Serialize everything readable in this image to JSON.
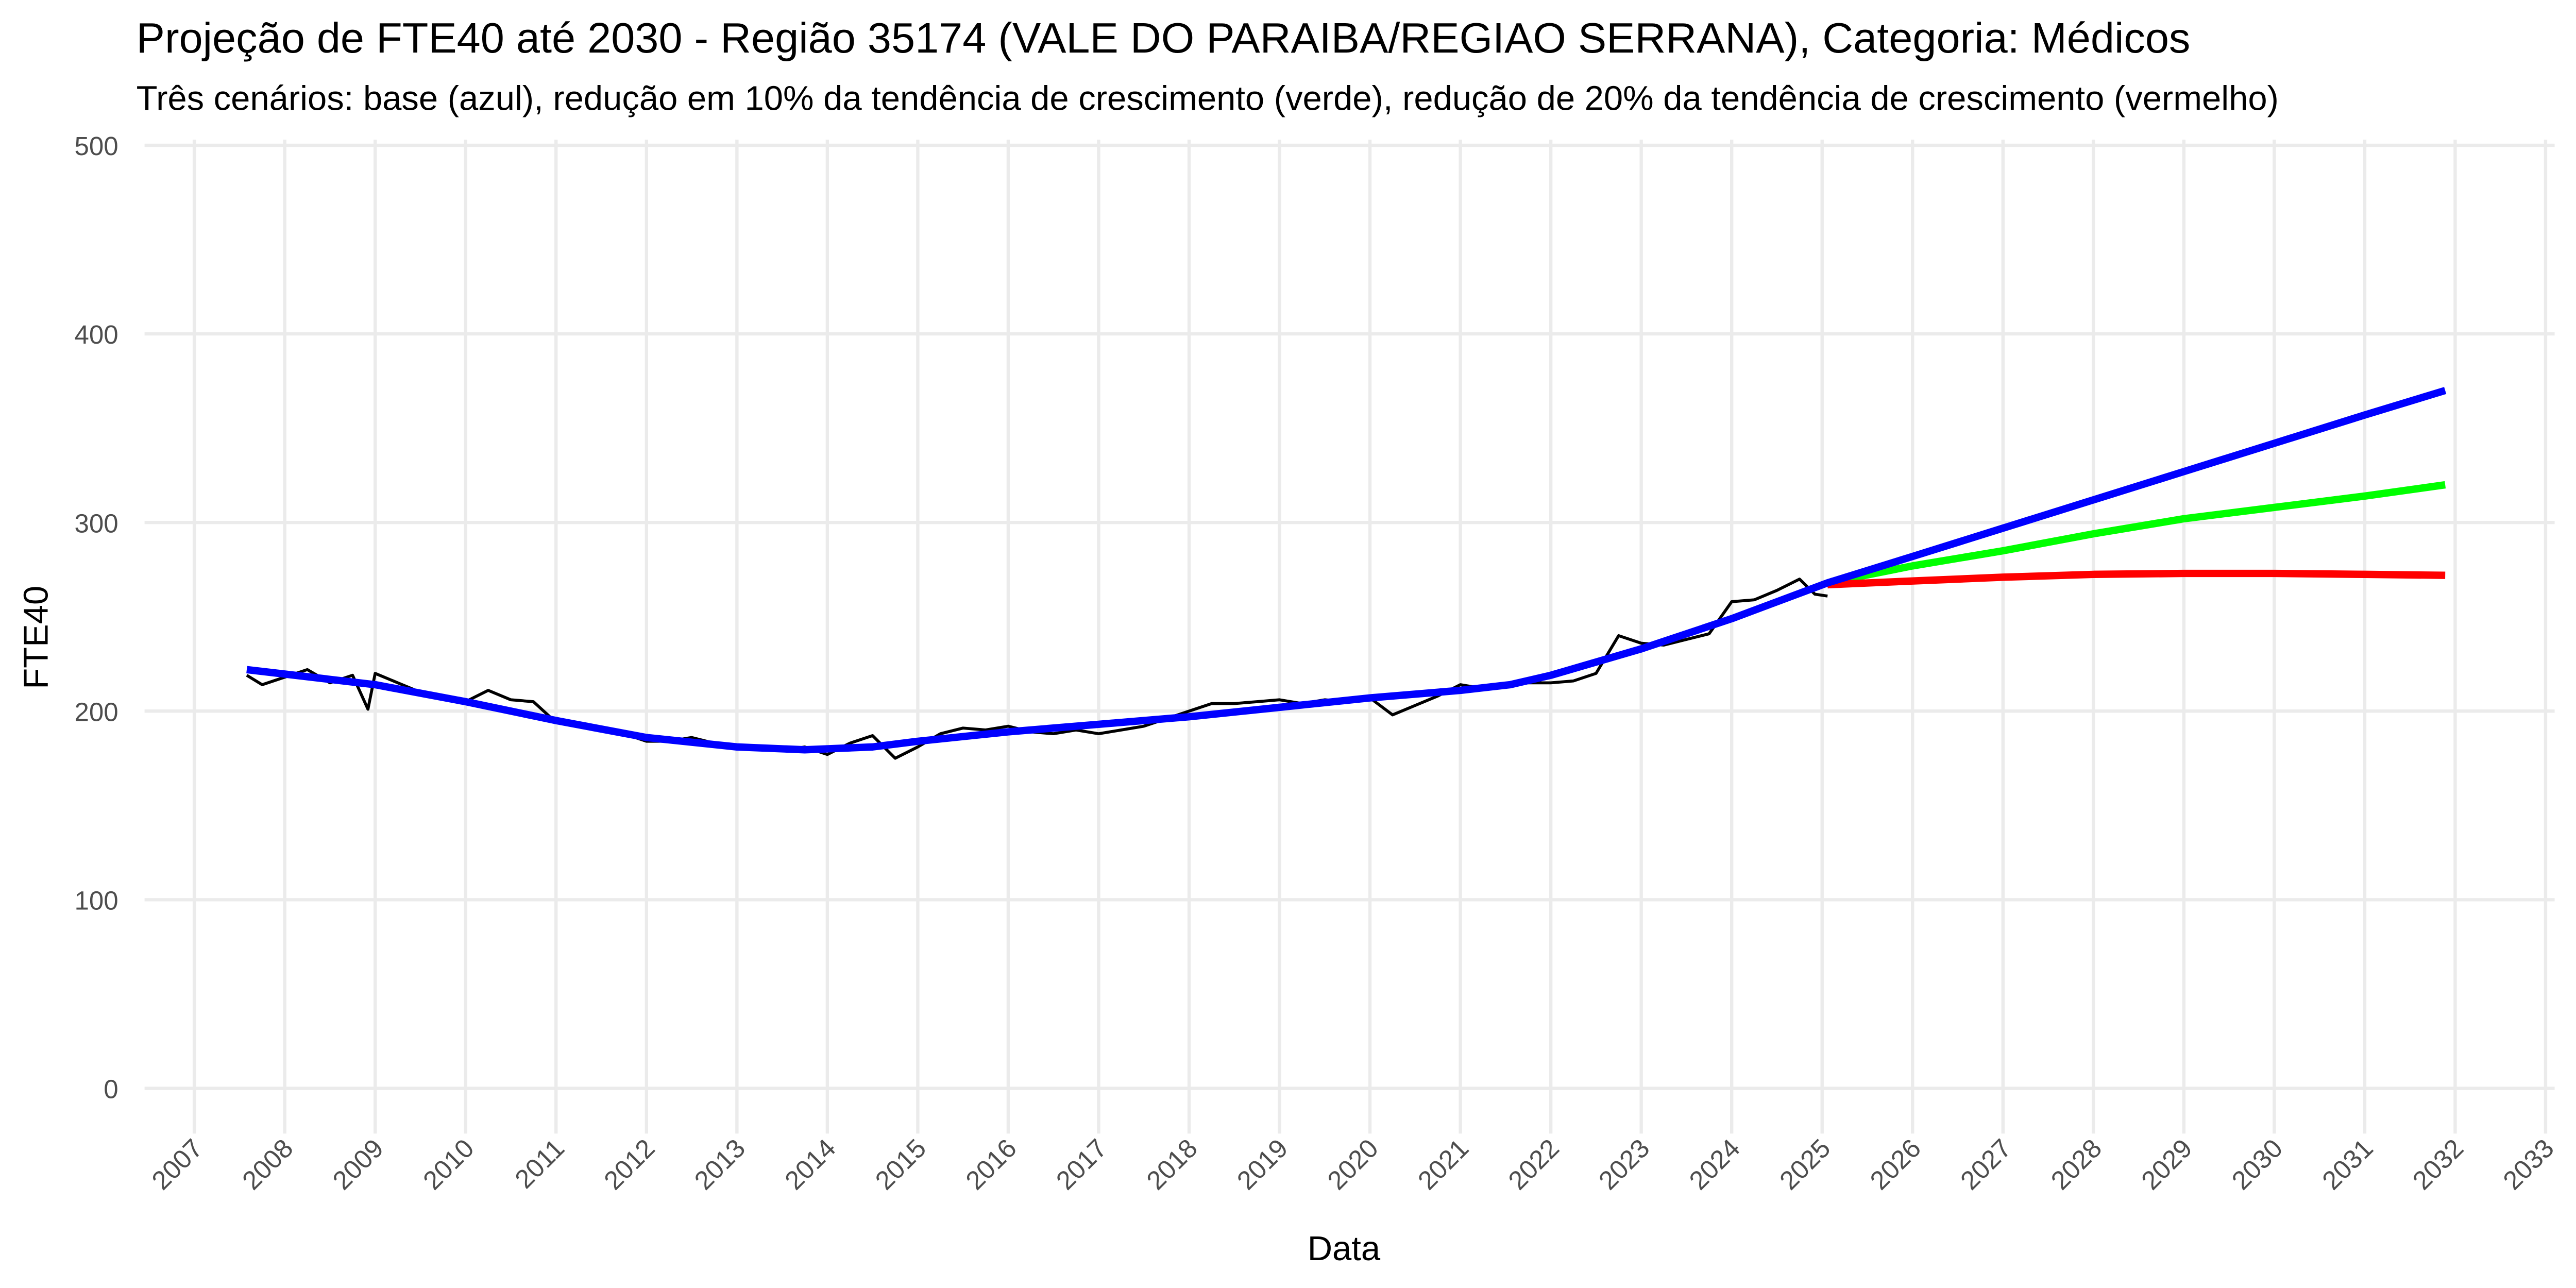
{
  "chart_data": {
    "type": "line",
    "title": "Projeção de FTE40 até 2030 - Região 35174 (VALE DO PARAIBA/REGIAO SERRANA), Categoria: Médicos",
    "subtitle": "Três cenários: base (azul), redução em 10% da tendência de crescimento (verde), redução de 20% da tendência de crescimento (vermelho)",
    "x_label": "Data",
    "y_label": "FTE40",
    "xlim": [
      2006.45,
      2033.1
    ],
    "ylim": [
      -24,
      503
    ],
    "xticks": [
      2007,
      2008,
      2009,
      2010,
      2011,
      2012,
      2013,
      2014,
      2015,
      2016,
      2017,
      2018,
      2019,
      2020,
      2021,
      2022,
      2023,
      2024,
      2025,
      2026,
      2027,
      2028,
      2029,
      2030,
      2031,
      2032,
      2033
    ],
    "yticks": [
      0,
      100,
      200,
      300,
      400,
      500
    ],
    "grid": true,
    "series": [
      {
        "color": "#000000",
        "width": 1.8,
        "x": [
          2007.58,
          2007.75,
          2008.0,
          2008.25,
          2008.5,
          2008.75,
          2008.92,
          2009.0,
          2009.25,
          2009.5,
          2009.75,
          2010.0,
          2010.25,
          2010.5,
          2010.75,
          2011.0,
          2011.25,
          2011.5,
          2011.75,
          2012.0,
          2012.25,
          2012.5,
          2012.75,
          2013.0,
          2013.25,
          2013.5,
          2013.75,
          2014.0,
          2014.25,
          2014.5,
          2014.75,
          2015.0,
          2015.25,
          2015.5,
          2015.75,
          2016.0,
          2016.25,
          2016.5,
          2016.75,
          2017.0,
          2017.25,
          2017.5,
          2017.75,
          2018.0,
          2018.25,
          2018.5,
          2018.75,
          2019.0,
          2019.25,
          2019.5,
          2019.75,
          2020.0,
          2020.25,
          2020.5,
          2020.75,
          2021.0,
          2021.25,
          2021.5,
          2021.75,
          2022.0,
          2022.25,
          2022.5,
          2022.75,
          2023.0,
          2023.25,
          2023.5,
          2023.75,
          2024.0,
          2024.25,
          2024.5,
          2024.75,
          2024.92,
          2025.06
        ],
        "values": [
          219,
          214,
          218,
          222,
          215,
          219,
          201,
          220,
          215,
          210,
          207,
          205,
          211,
          206,
          205,
          194,
          192,
          190,
          188,
          184,
          184,
          186,
          183,
          181,
          180,
          179,
          181,
          177,
          183,
          187,
          175,
          181,
          188,
          191,
          190,
          192,
          189,
          188,
          190,
          188,
          190,
          192,
          196,
          200,
          204,
          204,
          205,
          206,
          204,
          206,
          205,
          207,
          198,
          203,
          208,
          214,
          212,
          214,
          215,
          215,
          216,
          220,
          240,
          236,
          235,
          238,
          241,
          258,
          259,
          264,
          270,
          262,
          261
        ]
      },
      {
        "color": "#00ff00",
        "width": 4.5,
        "x": [
          2025.06,
          2026,
          2027,
          2028,
          2029,
          2030,
          2031,
          2031.89
        ],
        "values": [
          268,
          277,
          285,
          294,
          302,
          308,
          314,
          320
        ]
      },
      {
        "color": "#ff0000",
        "width": 4.5,
        "x": [
          2025.06,
          2026,
          2027,
          2028,
          2029,
          2030,
          2031,
          2031.89
        ],
        "values": [
          267,
          269,
          271,
          272.5,
          273,
          273,
          272.5,
          272
        ]
      },
      {
        "color": "#0000ff",
        "width": 4.5,
        "x": [
          2007.58,
          2009,
          2010,
          2011,
          2012,
          2013,
          2013.75,
          2014.5,
          2015,
          2016,
          2017,
          2018,
          2019,
          2020,
          2021,
          2021.55,
          2022,
          2023,
          2024,
          2025.06,
          2026,
          2027,
          2028,
          2029,
          2030,
          2031,
          2031.89
        ],
        "values": [
          222,
          214,
          205,
          195,
          186,
          181,
          179.5,
          181,
          184,
          189,
          193,
          197,
          202,
          207,
          211,
          214,
          219,
          233,
          249,
          268,
          282,
          297,
          312,
          327,
          342,
          357,
          370
        ]
      }
    ]
  }
}
